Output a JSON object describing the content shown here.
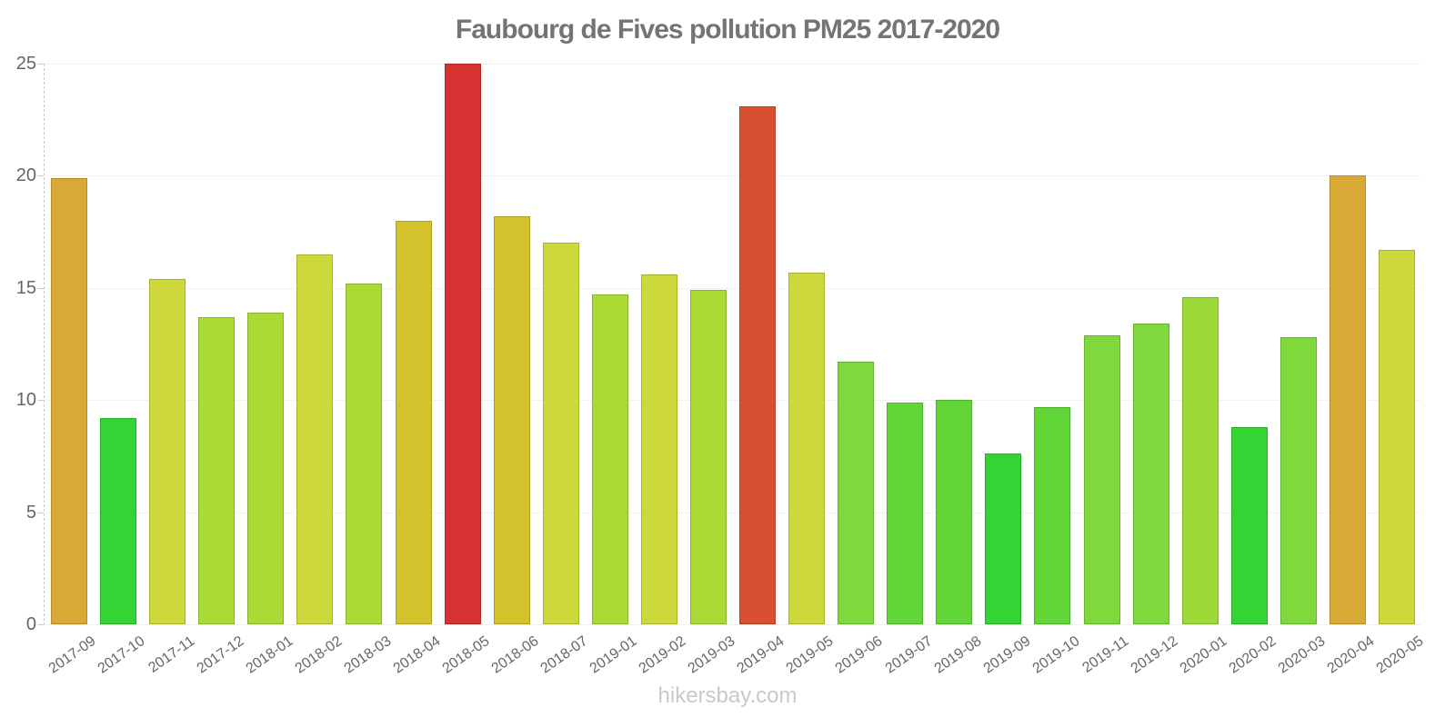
{
  "title": "Faubourg de Fives pollution PM25 2017-2020",
  "watermark": "hikersbay.com",
  "colors": {
    "title_text": "#747474",
    "axis_label_text": "#666666",
    "watermark_text": "#c9c9c9",
    "severity_red": "#D63232",
    "severity_orange_red": "#D94F32",
    "severity_goldenrod": "#D9A935",
    "severity_dark_yellow": "#D4C22C",
    "severity_yellow_green": "#CDD83A",
    "severity_green_yellow": "#AADA35",
    "severity_light_green": "#7FD93C",
    "severity_green": "#62D636",
    "severity_bright_green": "#33D433"
  },
  "chart_data": {
    "type": "bar",
    "title": "Faubourg de Fives pollution PM25 2017-2020",
    "xlabel": "",
    "ylabel": "",
    "ylim": [
      0,
      25
    ],
    "yticks": [
      0,
      5,
      10,
      15,
      20,
      25
    ],
    "grid": true,
    "legend": "none",
    "xlabel_rotation_deg": -35,
    "categories": [
      "2017-09",
      "2017-10",
      "2017-11",
      "2017-12",
      "2018-01",
      "2018-02",
      "2018-03",
      "2018-04",
      "2018-05",
      "2018-06",
      "2018-07",
      "2019-01",
      "2019-02",
      "2019-03",
      "2019-04",
      "2019-05",
      "2019-06",
      "2019-07",
      "2019-08",
      "2019-09",
      "2019-10",
      "2019-11",
      "2019-12",
      "2020-01",
      "2020-02",
      "2020-03",
      "2020-04",
      "2020-05"
    ],
    "values": [
      19.9,
      9.2,
      15.4,
      13.7,
      13.9,
      16.5,
      15.2,
      18.0,
      25.0,
      18.2,
      17.0,
      14.7,
      15.6,
      14.9,
      23.1,
      15.7,
      11.7,
      9.9,
      10.0,
      7.6,
      9.7,
      12.9,
      13.4,
      14.6,
      8.8,
      12.8,
      20.0,
      16.7
    ],
    "bar_colors": [
      "#D9A935",
      "#33D433",
      "#CDD83A",
      "#AADA35",
      "#AADA35",
      "#CDD83A",
      "#AADA35",
      "#D4C22C",
      "#D63232",
      "#D4C22C",
      "#CDD83A",
      "#AADA35",
      "#CDD83A",
      "#AADA35",
      "#D94F32",
      "#CDD83A",
      "#7FD93C",
      "#62D636",
      "#62D636",
      "#33D433",
      "#62D636",
      "#7FD93C",
      "#7FD93C",
      "#9BDA37",
      "#33D433",
      "#7FD93C",
      "#D9A935",
      "#CDD83A"
    ]
  }
}
